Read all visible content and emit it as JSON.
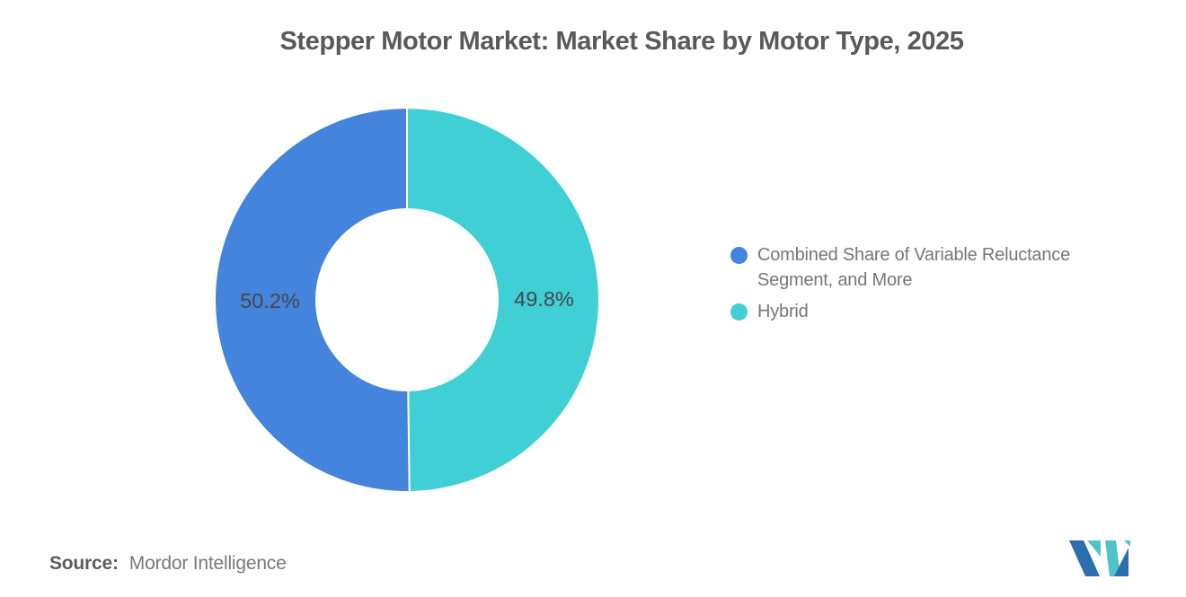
{
  "chart_data": {
    "type": "pie",
    "subtype": "donut",
    "title": "Stepper Motor Market: Market Share by Motor Type, 2025",
    "series": [
      {
        "name": "Combined Share of Variable Reluctance Segment, and More",
        "value": 50.2,
        "label": "50.2%",
        "color": "#4584DC",
        "side": "left"
      },
      {
        "name": "Hybrid",
        "value": 49.8,
        "label": "49.8%",
        "color": "#40CFD4",
        "side": "right"
      }
    ],
    "start_angle": "top",
    "inner_radius_ratio": 0.47,
    "slice_gap_stroke": "#ffffff",
    "label_color": "#43484C",
    "legend_position": "right",
    "title_color": "#58595B"
  },
  "source": {
    "label": "Source:",
    "value": "Mordor Intelligence"
  },
  "logo": {
    "blue": "#2C6FAE",
    "teal": "#4EC4C6"
  }
}
